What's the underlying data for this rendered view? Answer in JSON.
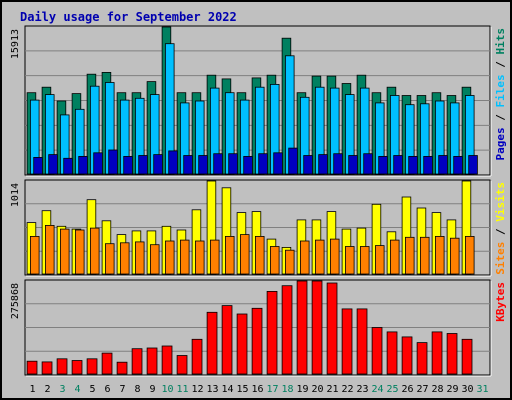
{
  "chart_data": [
    {
      "type": "bar",
      "title": "Daily usage for September 2022",
      "categories": [
        "1",
        "2",
        "3",
        "4",
        "5",
        "6",
        "7",
        "8",
        "9",
        "10",
        "11",
        "12",
        "13",
        "14",
        "15",
        "16",
        "17",
        "18",
        "19",
        "20",
        "21",
        "22",
        "23",
        "24",
        "25",
        "26",
        "27",
        "28",
        "29",
        "30",
        "31"
      ],
      "weekend_days": [
        "3",
        "4",
        "10",
        "11",
        "17",
        "18",
        "24",
        "25",
        "31"
      ],
      "y_max_label": "15913",
      "ylim": [
        0,
        15913
      ],
      "ylabel_parts": [
        "Pages",
        "Files",
        "Hits"
      ],
      "series": [
        {
          "name": "Hits",
          "color": "#008060",
          "values": [
            8800,
            9400,
            7900,
            8700,
            10800,
            11000,
            8800,
            8800,
            10000,
            15913,
            8800,
            8800,
            10700,
            10300,
            8800,
            10400,
            10700,
            14700,
            8800,
            10600,
            10600,
            9800,
            10700,
            8800,
            9400,
            8500,
            8500,
            8800,
            8500,
            9400,
            0
          ]
        },
        {
          "name": "Files",
          "color": "#00c0ff",
          "values": [
            8000,
            8600,
            6400,
            7000,
            9500,
            9900,
            8000,
            8200,
            8600,
            14100,
            7700,
            7900,
            9300,
            8800,
            8000,
            9400,
            9700,
            12800,
            8300,
            9400,
            9300,
            8600,
            9300,
            7700,
            8500,
            7500,
            7600,
            7900,
            7700,
            8500,
            0
          ]
        },
        {
          "name": "Pages",
          "color": "#0000c0",
          "values": [
            1800,
            2100,
            1700,
            1900,
            2300,
            2600,
            1900,
            2000,
            2100,
            2500,
            2000,
            2000,
            2200,
            2200,
            1900,
            2200,
            2300,
            2800,
            2000,
            2100,
            2200,
            2000,
            2200,
            1900,
            2000,
            1900,
            1900,
            2000,
            1900,
            2000,
            0
          ]
        }
      ]
    },
    {
      "type": "bar",
      "categories": [
        "1",
        "2",
        "3",
        "4",
        "5",
        "6",
        "7",
        "8",
        "9",
        "10",
        "11",
        "12",
        "13",
        "14",
        "15",
        "16",
        "17",
        "18",
        "19",
        "20",
        "21",
        "22",
        "23",
        "24",
        "25",
        "26",
        "27",
        "28",
        "29",
        "30",
        "31"
      ],
      "y_max_label": "1014",
      "ylim": [
        0,
        1014
      ],
      "ylabel_parts": [
        "Sites",
        "Visits"
      ],
      "series": [
        {
          "name": "Visits",
          "color": "#ffff00",
          "values": [
            560,
            690,
            520,
            490,
            810,
            580,
            430,
            470,
            470,
            520,
            480,
            700,
            1014,
            940,
            670,
            680,
            380,
            290,
            590,
            590,
            680,
            490,
            500,
            760,
            460,
            840,
            720,
            670,
            590,
            1014,
            0
          ]
        },
        {
          "name": "Sites",
          "color": "#ff8000",
          "values": [
            410,
            530,
            490,
            480,
            500,
            330,
            340,
            350,
            320,
            360,
            370,
            360,
            370,
            410,
            430,
            410,
            300,
            260,
            360,
            370,
            380,
            300,
            300,
            310,
            370,
            400,
            400,
            410,
            390,
            410,
            0
          ]
        }
      ]
    },
    {
      "type": "bar",
      "categories": [
        "1",
        "2",
        "3",
        "4",
        "5",
        "6",
        "7",
        "8",
        "9",
        "10",
        "11",
        "12",
        "13",
        "14",
        "15",
        "16",
        "17",
        "18",
        "19",
        "20",
        "21",
        "22",
        "23",
        "24",
        "25",
        "26",
        "27",
        "28",
        "29",
        "30",
        "31"
      ],
      "y_max_label": "275868",
      "ylim": [
        0,
        275868
      ],
      "ylabel_parts": [
        "KBytes"
      ],
      "series": [
        {
          "name": "KBytes",
          "color": "#ff0000",
          "values": [
            38000,
            36000,
            45000,
            40000,
            45000,
            62000,
            35000,
            75000,
            77000,
            83000,
            55000,
            103000,
            183000,
            203000,
            178000,
            195000,
            245000,
            262000,
            275868,
            275868,
            270000,
            193000,
            193000,
            138000,
            125000,
            110000,
            93000,
            125000,
            120000,
            103000,
            0
          ]
        }
      ]
    }
  ]
}
